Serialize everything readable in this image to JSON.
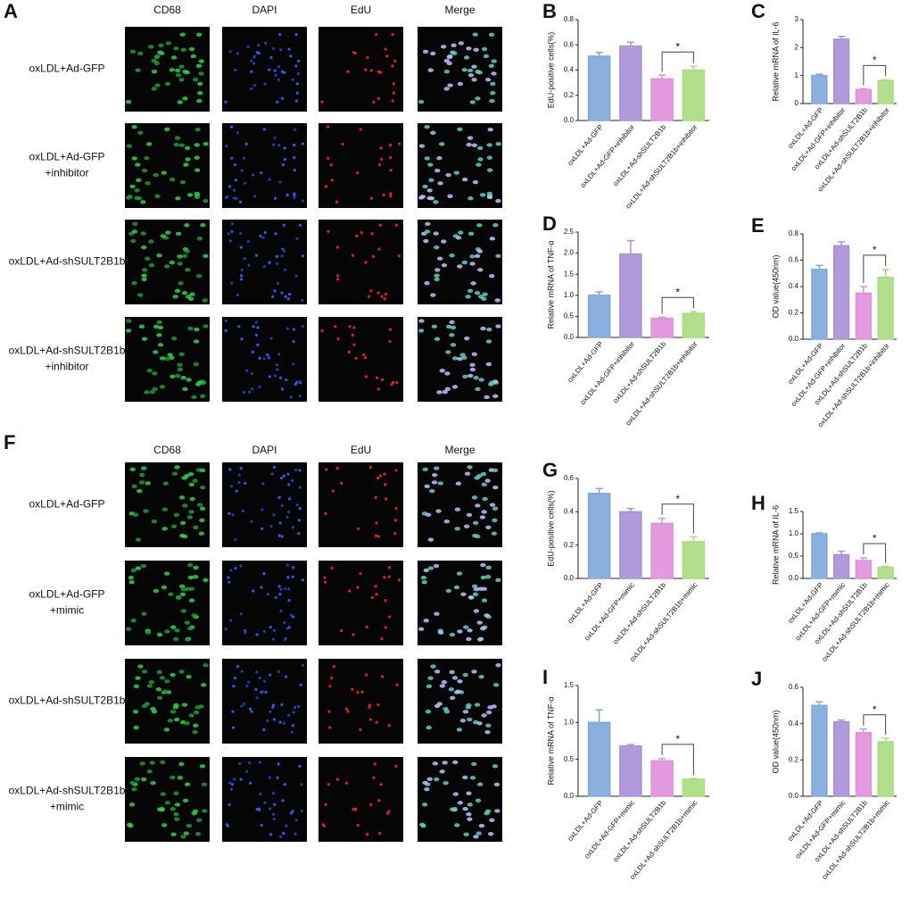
{
  "image_panels": [
    {
      "label": "A",
      "columns": [
        "CD68",
        "DAPI",
        "EdU",
        "Merge"
      ],
      "rows": [
        [
          "oxLDL+Ad-GFP"
        ],
        [
          "oxLDL+Ad-GFP",
          "+inhibitor"
        ],
        [
          "oxLDL+Ad-shSULT2B1b"
        ],
        [
          "oxLDL+Ad-shSULT2B1b",
          "+inhibitor"
        ]
      ]
    },
    {
      "label": "F",
      "columns": [
        "CD68",
        "DAPI",
        "EdU",
        "Merge"
      ],
      "rows": [
        [
          "oxLDL+Ad-GFP"
        ],
        [
          "oxLDL+Ad-GFP",
          "+mimic"
        ],
        [
          "oxLDL+Ad-shSULT2B1b"
        ],
        [
          "oxLDL+Ad-shSULT2B1b",
          "+mimic"
        ]
      ]
    }
  ],
  "chart_data": [
    {
      "type": "bar",
      "panel_label": "B",
      "y_label": "EdU-positive cells(%)",
      "categories": [
        "oxLDL+Ad-GFP",
        "oxLDL+Ad-GFP+inhibitor",
        "oxLDL+Ad-shSULT2B1b",
        "oxLDL+Ad-shSULT2B1b+inhibitor"
      ],
      "values": [
        0.51,
        0.59,
        0.33,
        0.4
      ],
      "errors": [
        0.03,
        0.03,
        0.03,
        0.03
      ],
      "colors": [
        "#7ea6dc",
        "#a98fd6",
        "#e08fdc",
        "#a8dc7e"
      ],
      "annotation": "*",
      "ylim": [
        0,
        0.8
      ],
      "yticks": [
        {
          "value": 0,
          "label": "0.0"
        },
        0.2,
        0.4,
        0.6,
        0.8
      ]
    },
    {
      "type": "bar",
      "panel_label": "C",
      "y_label": "Relative mRNA of IL-6",
      "categories": [
        "oxLDL+Ad-GFP",
        "oxLDL+Ad-GFP+inhibitor",
        "oxLDL+Ad-shSULT2B1b",
        "oxLDL+Ad-shSULT2B1b+inhibitor"
      ],
      "values": [
        1.0,
        2.3,
        0.5,
        0.82
      ],
      "errors": [
        0.05,
        0.1,
        0.03,
        0.03
      ],
      "colors": [
        "#7ea6dc",
        "#a98fd6",
        "#e08fdc",
        "#a8dc7e"
      ],
      "annotation": "*",
      "ylim": [
        0,
        3
      ],
      "yticks": [
        0,
        1,
        2,
        3
      ]
    },
    {
      "type": "bar",
      "panel_label": "D",
      "y_label": "Relative mRNA of TNF-α",
      "categories": [
        "oxLDL+Ad-GFP",
        "oxLDL+Ad-GFP+inhibitor",
        "oxLDL+Ad-shSULT2B1b",
        "oxLDL+Ad-shSULT2B1b+inhibitor"
      ],
      "values": [
        1.0,
        1.98,
        0.45,
        0.57
      ],
      "errors": [
        0.08,
        0.32,
        0.03,
        0.04
      ],
      "colors": [
        "#7ea6dc",
        "#a98fd6",
        "#e08fdc",
        "#a8dc7e"
      ],
      "annotation": "*",
      "ylim": [
        0,
        2.5
      ],
      "yticks": [
        {
          "value": 0,
          "label": "0.0"
        },
        0.5,
        {
          "value": 1,
          "label": "1.0"
        },
        1.5,
        {
          "value": 2,
          "label": "2.0"
        },
        2.5
      ]
    },
    {
      "type": "bar",
      "panel_label": "E",
      "y_label": "OD value(450nm)",
      "categories": [
        "oxLDL+Ad-GFP",
        "oxLDL+Ad-GFP+inhibitor",
        "oxLDL+Ad-shSULT2B1b",
        "oxLDL+Ad-shSULT2B1b+inhibitor"
      ],
      "values": [
        0.53,
        0.71,
        0.35,
        0.47
      ],
      "errors": [
        0.03,
        0.03,
        0.05,
        0.06
      ],
      "colors": [
        "#7ea6dc",
        "#a98fd6",
        "#e08fdc",
        "#a8dc7e"
      ],
      "annotation": "*",
      "ylim": [
        0,
        0.8
      ],
      "yticks": [
        {
          "value": 0,
          "label": "0.0"
        },
        0.2,
        0.4,
        0.6,
        0.8
      ]
    },
    {
      "type": "bar",
      "panel_label": "G",
      "y_label": "EdU-positive cells(%)",
      "categories": [
        "oxLDL+Ad-GFP",
        "oxLDL+Ad-GFP+mimic",
        "oxLDL+Ad-shSULT2B1b",
        "oxLDL+Ad-shSULT2B1b+mimic"
      ],
      "values": [
        0.51,
        0.4,
        0.33,
        0.22
      ],
      "errors": [
        0.03,
        0.02,
        0.03,
        0.03
      ],
      "colors": [
        "#7ea6dc",
        "#a98fd6",
        "#e08fdc",
        "#a8dc7e"
      ],
      "annotation": "*",
      "ylim": [
        0,
        0.6
      ],
      "yticks": [
        {
          "value": 0,
          "label": "0.0"
        },
        0.2,
        0.4,
        0.6
      ]
    },
    {
      "type": "bar",
      "panel_label": "H",
      "y_label": "Relative mRNA of IL-6",
      "categories": [
        "oxLDL+Ad-GFP",
        "oxLDL+Ad-GFP+mimic",
        "oxLDL+Ad-shSULT2B1b",
        "oxLDL+Ad-shSULT2B1b+mimic"
      ],
      "values": [
        1.0,
        0.53,
        0.4,
        0.25
      ],
      "errors": [
        0.02,
        0.08,
        0.06,
        0.02
      ],
      "colors": [
        "#7ea6dc",
        "#a98fd6",
        "#e08fdc",
        "#a8dc7e"
      ],
      "annotation": "*",
      "ylim": [
        0,
        1.5
      ],
      "yticks": [
        {
          "value": 0,
          "label": "0.0"
        },
        0.5,
        {
          "value": 1,
          "label": "1.0"
        },
        1.5
      ]
    },
    {
      "type": "bar",
      "panel_label": "I",
      "y_label": "Relative mRNA of TNF-α",
      "categories": [
        "oxLDL+Ad-GFP",
        "oxLDL+Ad-GFP+mimic",
        "oxLDL+Ad-shSULT2B1b",
        "oxLDL+Ad-shSULT2B1b+mimic"
      ],
      "values": [
        1.0,
        0.68,
        0.48,
        0.23
      ],
      "errors": [
        0.17,
        0.02,
        0.03,
        0.01
      ],
      "colors": [
        "#7ea6dc",
        "#a98fd6",
        "#e08fdc",
        "#a8dc7e"
      ],
      "annotation": "*",
      "ylim": [
        0,
        1.5
      ],
      "yticks": [
        {
          "value": 0,
          "label": "0.0"
        },
        0.5,
        {
          "value": 1,
          "label": "1.0"
        },
        1.5
      ]
    },
    {
      "type": "bar",
      "panel_label": "J",
      "y_label": "OD value(450nm)",
      "categories": [
        "oxLDL+Ad-GFP",
        "oxLDL+Ad-GFP+mimic",
        "oxLDL+Ad-shSULT2B1b",
        "oxLDL+Ad-shSULT2B1b+mimic"
      ],
      "values": [
        0.5,
        0.41,
        0.35,
        0.3
      ],
      "errors": [
        0.02,
        0.01,
        0.02,
        0.02
      ],
      "colors": [
        "#7ea6dc",
        "#a98fd6",
        "#e08fdc",
        "#a8dc7e"
      ],
      "annotation": "*",
      "ylim": [
        0,
        0.6
      ],
      "yticks": [
        {
          "value": 0,
          "label": "0.0"
        },
        0.2,
        0.4,
        0.6
      ]
    }
  ]
}
